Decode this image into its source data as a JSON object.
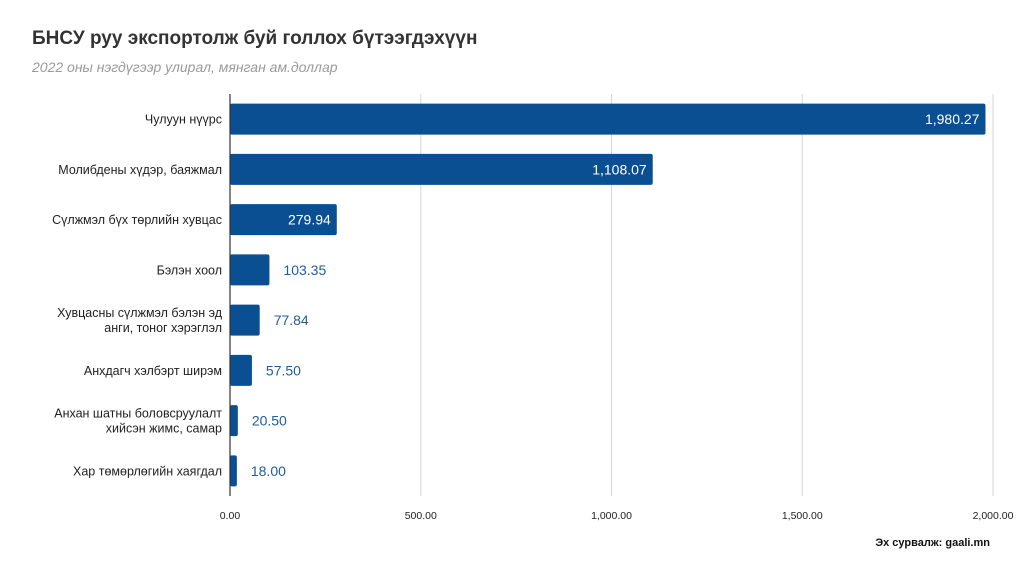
{
  "header": {
    "title": "БНСУ руу экспортолж буй голлох бүтээгдэхүүн",
    "subtitle": "2022 оны нэгдүгээр улирал, мянган ам.доллар"
  },
  "footer": {
    "source": "Эх сурвалж: gaali.mn"
  },
  "chart_data": {
    "type": "bar",
    "orientation": "horizontal",
    "categories": [
      [
        "Чулуун нүүрс"
      ],
      [
        "Молибдены хүдэр, баяжмал"
      ],
      [
        "Сүлжмэл бүх төрлийн хувцас"
      ],
      [
        "Бэлэн хоол"
      ],
      [
        "Хувцасны сүлжмэл бэлэн эд",
        "анги, тоног хэрэглэл"
      ],
      [
        "Анхдагч хэлбэрт ширэм"
      ],
      [
        "Анхан шатны боловсруулалт",
        "хийсэн жимс, самар"
      ],
      [
        "Хар төмөрлөгийн хаягдал"
      ]
    ],
    "values": [
      1980.27,
      1108.07,
      279.94,
      103.35,
      77.84,
      57.5,
      20.5,
      18.0
    ],
    "value_labels": [
      "1,980.27",
      "1,108.07",
      "279.94",
      "103.35",
      "77.84",
      "57.50",
      "20.50",
      "18.00"
    ],
    "xlim": [
      0,
      2000
    ],
    "xticks": [
      0,
      500,
      1000,
      1500,
      2000
    ],
    "xtick_labels": [
      "0.00",
      "500.00",
      "1,000.00",
      "1,500.00",
      "2,000.00"
    ],
    "grid": true,
    "legend": false,
    "colors": {
      "bar": "#0b4f93",
      "label_inside": "#ffffff",
      "label_outside": "#1f5c9e",
      "grid": "#d6d6d6",
      "axis": "#333333"
    }
  }
}
